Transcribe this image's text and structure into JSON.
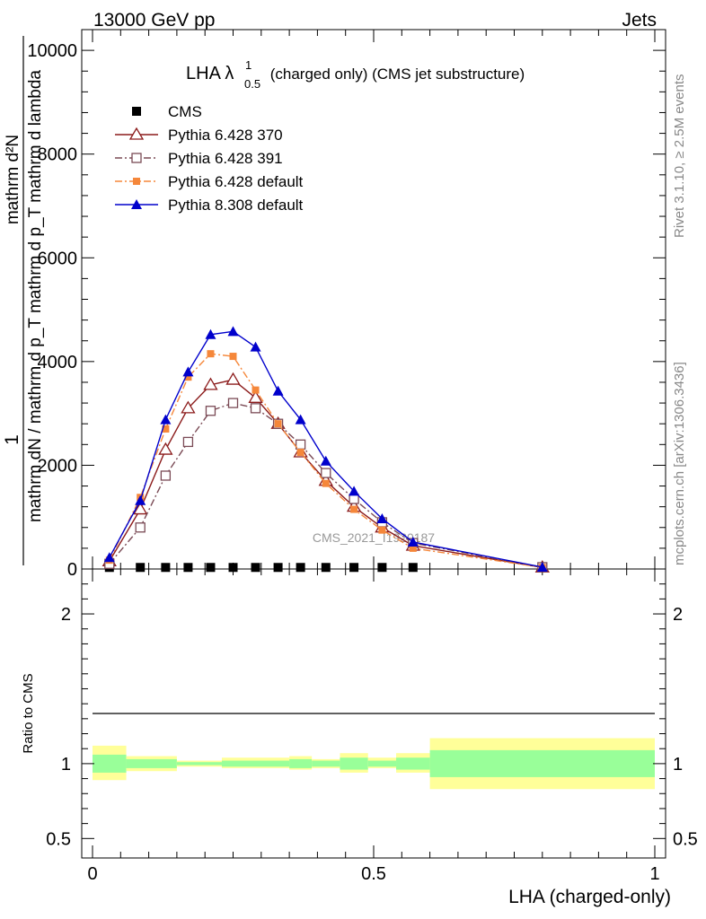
{
  "header": {
    "left": "13000 GeV pp",
    "right": "Jets"
  },
  "side_labels": {
    "top": "Rivet 3.1.10, ≥ 2.5M events",
    "bottom": "mcplots.cern.ch [arXiv:1306.3436]"
  },
  "watermark": "CMS_2021_I1920187",
  "chart_data": [
    {
      "type": "line",
      "title_main": "LHA λ",
      "title_sup": "1",
      "title_sub": "0.5",
      "title_rest": " (charged only) (CMS jet substructure)",
      "ylabel_parts": {
        "one": "1",
        "numer": "mathrm d",
        "denom": "mathrm dN / mathrm d p",
        "rest": "mathrm d p",
        "extra": "mathrm d lambda"
      },
      "ylabel_numer_full": "mathrm d²N",
      "ylabel_denom_full": "mathrm dN / mathrm d p_T mathrm d p_T mathrm d lambda",
      "ylim": [
        0,
        10400
      ],
      "yticks": [
        0,
        2000,
        4000,
        6000,
        8000,
        10000
      ],
      "ytick_labels": [
        "0",
        "2000",
        "4000",
        "6000",
        "8000",
        "10000"
      ],
      "x": [
        0.03,
        0.085,
        0.13,
        0.17,
        0.21,
        0.25,
        0.29,
        0.33,
        0.37,
        0.415,
        0.465,
        0.515,
        0.57,
        0.8
      ],
      "series": [
        {
          "name": "CMS",
          "color": "#000000",
          "marker": "square-filled",
          "line": "none",
          "x": [
            0.03,
            0.085,
            0.13,
            0.17,
            0.21,
            0.25,
            0.29,
            0.33,
            0.37,
            0.415,
            0.465,
            0.515,
            0.57
          ],
          "values": [
            30,
            30,
            30,
            30,
            30,
            30,
            30,
            30,
            30,
            30,
            30,
            30,
            30
          ]
        },
        {
          "name": "Pythia 6.428 370",
          "color": "#8b1a1a",
          "marker": "triangle-open",
          "line": "solid",
          "values": [
            150,
            1150,
            2300,
            3100,
            3550,
            3650,
            3300,
            2800,
            2250,
            1700,
            1200,
            800,
            450,
            30
          ]
        },
        {
          "name": "Pythia 6.428 391",
          "color": "#7a4a55",
          "marker": "square-open",
          "line": "dashdot",
          "values": [
            100,
            800,
            1800,
            2450,
            3050,
            3200,
            3100,
            2800,
            2400,
            1850,
            1350,
            900,
            500,
            35
          ]
        },
        {
          "name": "Pythia 6.428 default",
          "color": "#f5873a",
          "marker": "square-filled-small",
          "line": "dashdot",
          "values": [
            170,
            1380,
            2700,
            3700,
            4150,
            4100,
            3450,
            2800,
            2250,
            1650,
            1150,
            750,
            400,
            30
          ]
        },
        {
          "name": "Pythia 8.308 default",
          "color": "#0000cc",
          "marker": "triangle-filled",
          "line": "solid",
          "values": [
            220,
            1320,
            2880,
            3800,
            4520,
            4580,
            4280,
            3430,
            2880,
            2080,
            1500,
            970,
            520,
            35
          ]
        }
      ]
    },
    {
      "type": "area",
      "ylabel": "Ratio to CMS",
      "xlabel": "LHA (charged-only)",
      "xlim": [
        -0.02,
        1.02
      ],
      "xticks": [
        0,
        0.5,
        1
      ],
      "xtick_labels": [
        "0",
        "0.5",
        "1"
      ],
      "ylim": [
        0.37,
        2.3
      ],
      "yticks": [
        0.5,
        1,
        2
      ],
      "ytick_labels": [
        "0.5",
        "1",
        "2"
      ],
      "band_colors": {
        "inner": "#99ff99",
        "outer": "#ffff99"
      },
      "bands": [
        {
          "x0": 0.0,
          "x1": 0.06,
          "inner": [
            0.94,
            1.06
          ],
          "outer": [
            0.89,
            1.12
          ]
        },
        {
          "x0": 0.06,
          "x1": 0.15,
          "inner": [
            0.97,
            1.03
          ],
          "outer": [
            0.95,
            1.05
          ]
        },
        {
          "x0": 0.15,
          "x1": 0.23,
          "inner": [
            0.99,
            1.01
          ],
          "outer": [
            0.98,
            1.02
          ]
        },
        {
          "x0": 0.23,
          "x1": 0.35,
          "inner": [
            0.98,
            1.02
          ],
          "outer": [
            0.97,
            1.04
          ]
        },
        {
          "x0": 0.35,
          "x1": 0.39,
          "inner": [
            0.97,
            1.03
          ],
          "outer": [
            0.96,
            1.05
          ]
        },
        {
          "x0": 0.39,
          "x1": 0.44,
          "inner": [
            0.98,
            1.02
          ],
          "outer": [
            0.97,
            1.03
          ]
        },
        {
          "x0": 0.44,
          "x1": 0.49,
          "inner": [
            0.96,
            1.04
          ],
          "outer": [
            0.94,
            1.07
          ]
        },
        {
          "x0": 0.49,
          "x1": 0.54,
          "inner": [
            0.98,
            1.02
          ],
          "outer": [
            0.97,
            1.04
          ]
        },
        {
          "x0": 0.54,
          "x1": 0.6,
          "inner": [
            0.96,
            1.04
          ],
          "outer": [
            0.94,
            1.07
          ]
        },
        {
          "x0": 0.6,
          "x1": 1.0,
          "inner": [
            0.91,
            1.09
          ],
          "outer": [
            0.83,
            1.17
          ]
        }
      ],
      "reference": 1
    }
  ]
}
